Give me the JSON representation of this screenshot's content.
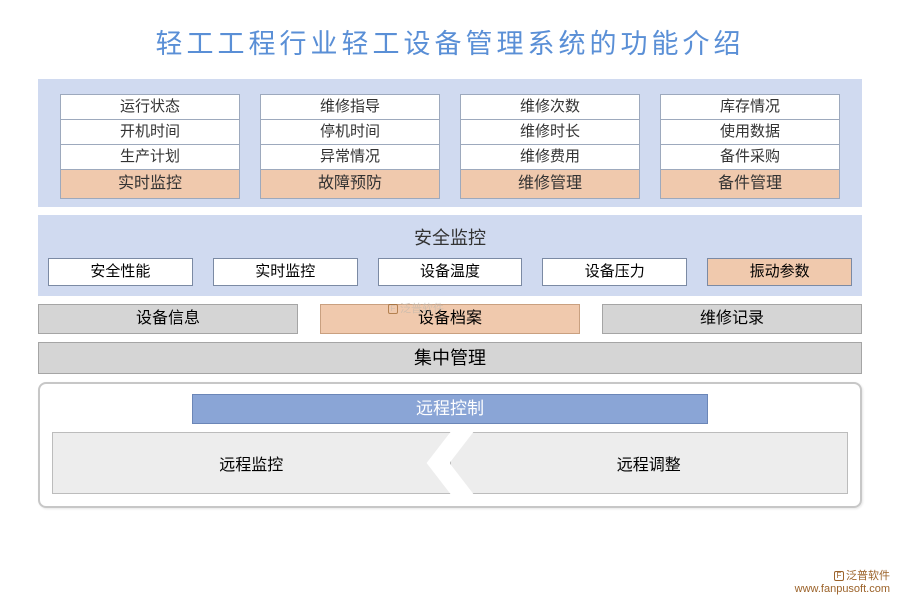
{
  "title": "轻工工程行业轻工设备管理系统的功能介绍",
  "colors": {
    "title_color": "#5a8fd6",
    "panel_bg": "#d0daf0",
    "cell_white": "#ffffff",
    "cell_orange": "#f0c9ad",
    "cell_gray": "#d5d5d5",
    "remote_header_bg": "#8aa5d6",
    "remote_cell_bg": "#ededed",
    "border_gray": "#9da9bd"
  },
  "top_section": {
    "columns": [
      {
        "items": [
          "运行状态",
          "开机时间",
          "生产计划"
        ],
        "header": "实时监控"
      },
      {
        "items": [
          "维修指导",
          "停机时间",
          "异常情况"
        ],
        "header": "故障预防"
      },
      {
        "items": [
          "维修次数",
          "维修时长",
          "维修费用"
        ],
        "header": "维修管理"
      },
      {
        "items": [
          "库存情况",
          "使用数据",
          "备件采购"
        ],
        "header": "备件管理"
      }
    ]
  },
  "mid_section": {
    "header": "安全监控",
    "items": [
      {
        "label": "安全性能",
        "highlight": false
      },
      {
        "label": "实时监控",
        "highlight": false
      },
      {
        "label": "设备温度",
        "highlight": false
      },
      {
        "label": "设备压力",
        "highlight": false
      },
      {
        "label": "振动参数",
        "highlight": true
      }
    ]
  },
  "files_row": [
    {
      "label": "设备信息",
      "highlight": false
    },
    {
      "label": "设备档案",
      "highlight": true
    },
    {
      "label": "维修记录",
      "highlight": false
    }
  ],
  "central_bar": "集中管理",
  "remote": {
    "header": "远程控制",
    "left": "远程监控",
    "right": "远程调整"
  },
  "watermark": {
    "brand": "泛普软件",
    "url": "www.fanpusoft.com"
  }
}
